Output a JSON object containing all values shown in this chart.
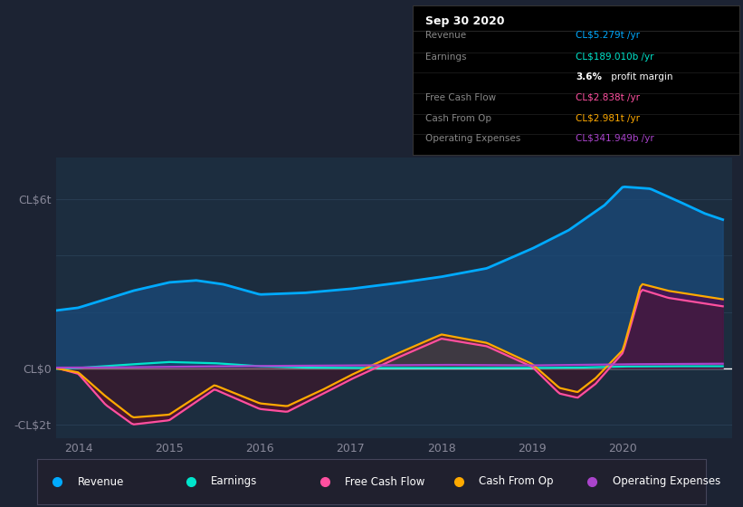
{
  "bg_color": "#1c2333",
  "chart_bg": "#1c2d3f",
  "ylim": [
    -2500000000000.0,
    7500000000000.0
  ],
  "xlim": [
    2013.75,
    2021.2
  ],
  "yticks": [
    -2000000000000.0,
    0,
    2000000000000.0,
    4000000000000.0,
    6000000000000.0
  ],
  "ytick_labels": [
    "-CL$2t",
    "CL$0",
    "",
    "",
    "CL$6t"
  ],
  "xticks": [
    2014,
    2015,
    2016,
    2017,
    2018,
    2019,
    2020
  ],
  "revenue_color": "#00aaff",
  "earnings_color": "#00e5cc",
  "fcf_color": "#ff50a0",
  "cashop_color": "#ffaa00",
  "opex_color": "#aa44cc",
  "revenue_fill": "#1a4a7a",
  "neg_fill": "#5a1530",
  "pos_fill": "#7a3515",
  "end_fill": "#3a1555",
  "legend_items": [
    {
      "label": "Revenue",
      "color": "#00aaff"
    },
    {
      "label": "Earnings",
      "color": "#00e5cc"
    },
    {
      "label": "Free Cash Flow",
      "color": "#ff50a0"
    },
    {
      "label": "Cash From Op",
      "color": "#ffaa00"
    },
    {
      "label": "Operating Expenses",
      "color": "#aa44cc"
    }
  ],
  "legend_bg": "#20202e",
  "legend_border": "#44445a",
  "info_title": "Sep 30 2020",
  "info_rows": [
    {
      "label": "Revenue",
      "value": "CL$5.279t /yr",
      "color": "#00aaff"
    },
    {
      "label": "Earnings",
      "value": "CL$189.010b /yr",
      "color": "#00e5cc"
    },
    {
      "label": "",
      "value": "3.6% profit margin",
      "color": "#cccccc",
      "bold_part": "3.6%"
    },
    {
      "label": "Free Cash Flow",
      "value": "CL$2.838t /yr",
      "color": "#ff50a0"
    },
    {
      "label": "Cash From Op",
      "value": "CL$2.981t /yr",
      "color": "#ffaa00"
    },
    {
      "label": "Operating Expenses",
      "value": "CL$341.949b /yr",
      "color": "#aa44cc"
    }
  ],
  "info_bg": "#000000",
  "info_border": "#333333",
  "grid_color": "#2a3f55",
  "zero_line_color": "#ffffff",
  "label_color": "#888899",
  "text_color": "#cccccc"
}
